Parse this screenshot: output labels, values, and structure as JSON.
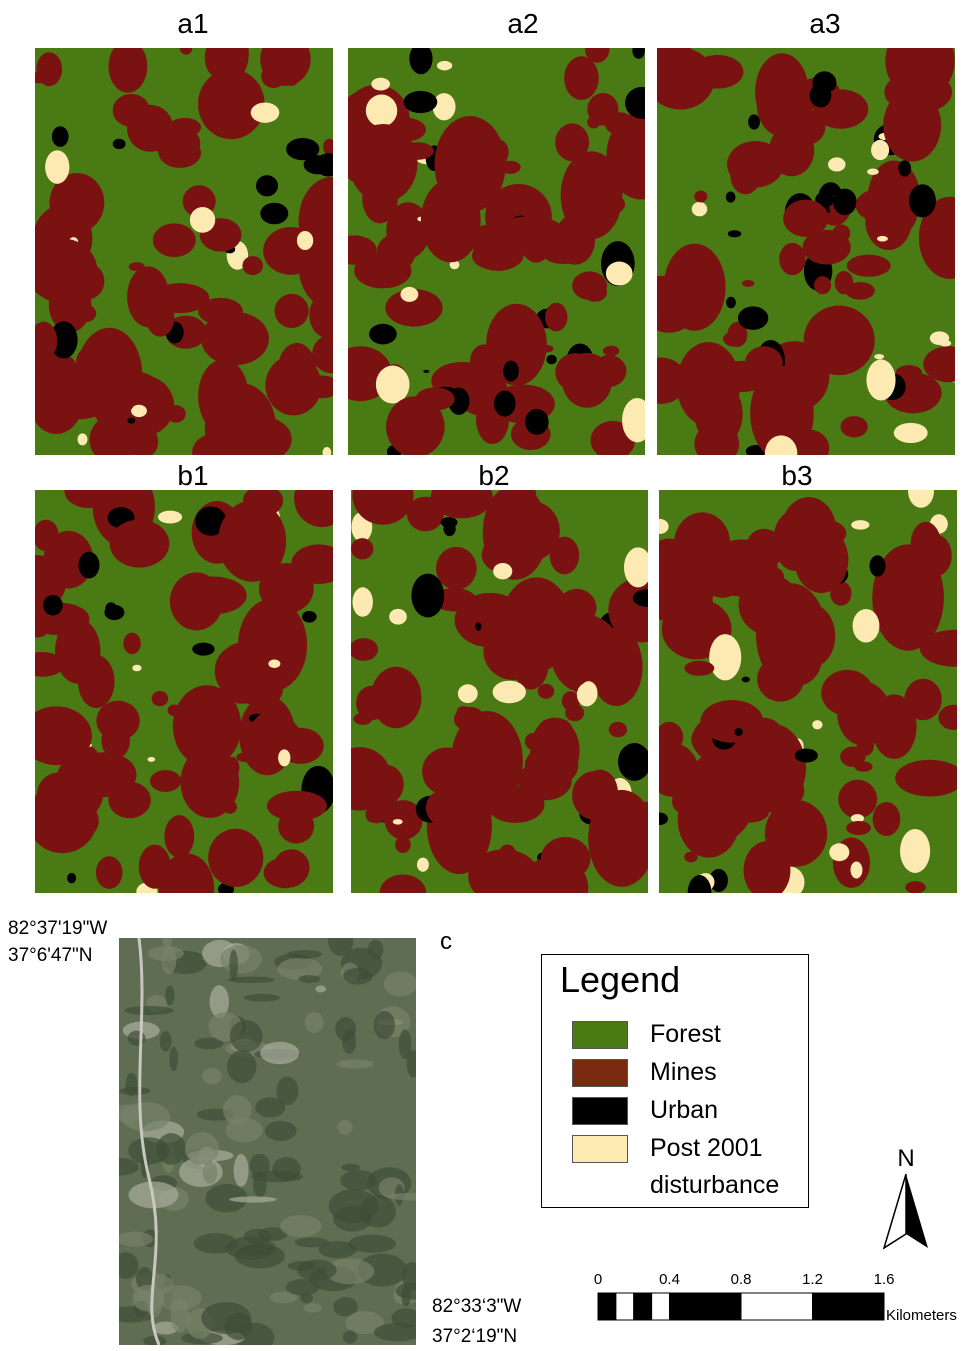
{
  "panels": [
    {
      "label": "a1"
    },
    {
      "label": "a2"
    },
    {
      "label": "a3"
    },
    {
      "label": "b1"
    },
    {
      "label": "b2"
    },
    {
      "label": "b3"
    }
  ],
  "image_c": {
    "label": "c",
    "top_left": [
      "82°37'19\"W",
      "37°6'47\"N"
    ],
    "bottom_right": [
      "82°33‘3\"W",
      "37°2‘19\"N"
    ]
  },
  "legend": {
    "title": "Legend",
    "items": [
      {
        "label": "Forest",
        "color": "#4a7a14"
      },
      {
        "label": "Mines",
        "color": "#7a2a0e"
      },
      {
        "label": "Urban",
        "color": "#000000"
      },
      {
        "label": "Post 2001 disturbance",
        "color": "#fde9b2"
      }
    ]
  },
  "north": "N",
  "scale_bar": {
    "ticks": [
      0,
      0.4,
      0.8,
      1.2,
      1.6
    ],
    "unit": "Kilometers"
  }
}
